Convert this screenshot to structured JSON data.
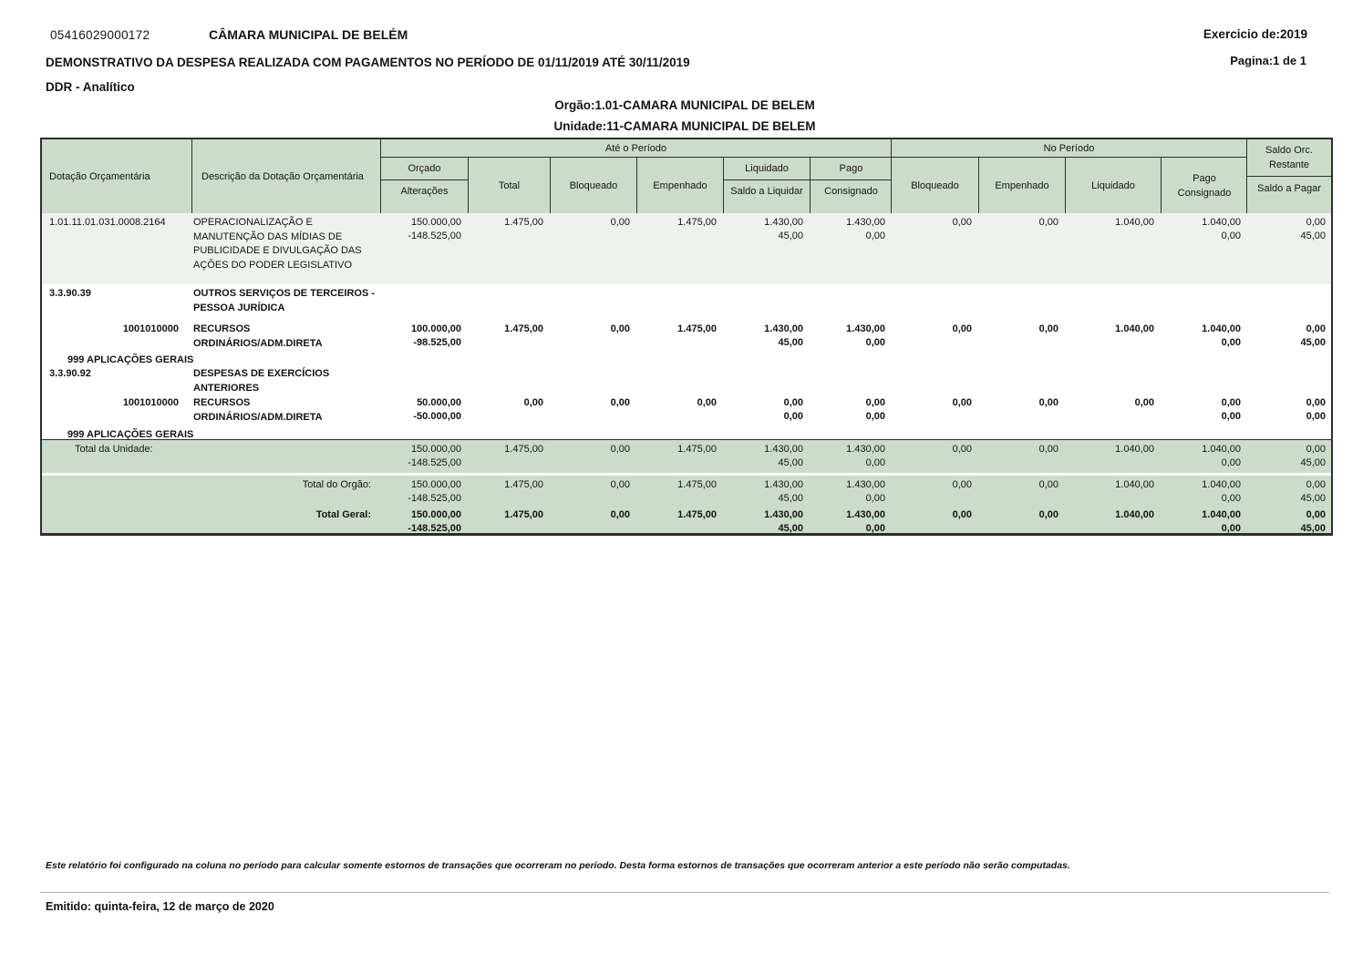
{
  "header": {
    "doc_code": "05416029000172",
    "entity": "CÂMARA MUNICIPAL DE BELÉM",
    "title": "DEMONSTRATIVO DA DESPESA REALIZADA COM PAGAMENTOS NO PERÍODO DE 01/11/2019 ATÉ 30/11/2019",
    "subtitle": "DDR - Analítico",
    "exercise": "Exercicio de:2019",
    "page": "Pagina:1 de 1",
    "orgao": "Orgão:1.01-CAMARA MUNICIPAL DE BELEM",
    "unidade": "Unidade:11-CAMARA MUNICIPAL DE BELEM"
  },
  "colors": {
    "header_green": "#ccdcca",
    "row_shade": "#eef2ec",
    "border": "#2e2e2e"
  },
  "table": {
    "head": {
      "dotacao": "Dotação Orçamentária",
      "descricao": "Descrição da Dotação Orçamentária",
      "ate_periodo": "Até o Período",
      "no_periodo": "No Período",
      "orcado": "Orçado",
      "alteracoes": "Alterações",
      "total": "Total",
      "bloqueado": "Bloqueado",
      "empenhado": "Empenhado",
      "liquidado": "Liquidado",
      "saldo_a_liquidar": "Saldo a Liquidar",
      "pago": "Pago",
      "consignado": "Consignado",
      "saldo_orc_restante": "Saldo Orc. Restante",
      "saldo_a_pagar": "Saldo a Pagar"
    },
    "rows": [
      {
        "code": "1.01.11.01.031.0008.2164",
        "desc": "OPERACIONALIZAÇÃO E MANUTENÇÃO DAS MÍDIAS DE PUBLICIDADE E DIVULGAÇÃO DAS AÇÕES DO PODER LEGISLATIVO",
        "v": {
          "orcado": "150.000,00",
          "alteracoes": "-148.525,00",
          "total": "1.475,00",
          "bloq_ate": "0,00",
          "emp_ate": "1.475,00",
          "liq_ate": "1.430,00",
          "saldo_liq": "45,00",
          "pago_ate": "1.430,00",
          "consig_ate": "0,00",
          "bloq_per": "0,00",
          "emp_per": "0,00",
          "liq_per": "1.040,00",
          "pago_per": "1.040,00",
          "consig_per": "0,00",
          "saldo_rest": "0,00",
          "saldo_pagar": "45,00"
        }
      },
      {
        "code": "3.3.90.39",
        "desc": "OUTROS SERVIÇOS DE TERCEIROS - PESSOA JURÍDICA"
      },
      {
        "code": "1001010000",
        "desc": "RECURSOS ORDINÁRIOS/ADM.DIRETA",
        "v": {
          "orcado": "100.000,00",
          "alteracoes": "-98.525,00",
          "total": "1.475,00",
          "bloq_ate": "0,00",
          "emp_ate": "1.475,00",
          "liq_ate": "1.430,00",
          "saldo_liq": "45,00",
          "pago_ate": "1.430,00",
          "consig_ate": "0,00",
          "bloq_per": "0,00",
          "emp_per": "0,00",
          "liq_per": "1.040,00",
          "pago_per": "1.040,00",
          "consig_per": "0,00",
          "saldo_rest": "0,00",
          "saldo_pagar": "45,00"
        }
      },
      {
        "code": "999 APLICAÇÕES GERAIS"
      },
      {
        "code": "3.3.90.92",
        "desc": "DESPESAS DE EXERCÍCIOS ANTERIORES"
      },
      {
        "code": "1001010000",
        "desc": "RECURSOS ORDINÁRIOS/ADM.DIRETA",
        "v": {
          "orcado": "50.000,00",
          "alteracoes": "-50.000,00",
          "total": "0,00",
          "bloq_ate": "0,00",
          "emp_ate": "0,00",
          "liq_ate": "0,00",
          "saldo_liq": "0,00",
          "pago_ate": "0,00",
          "consig_ate": "0,00",
          "bloq_per": "0,00",
          "emp_per": "0,00",
          "liq_per": "0,00",
          "pago_per": "0,00",
          "consig_per": "0,00",
          "saldo_rest": "0,00",
          "saldo_pagar": "0,00"
        }
      },
      {
        "code": "999 APLICAÇÕES GERAIS"
      }
    ],
    "totals": [
      {
        "label": "Total da Unidade:",
        "v": {
          "orcado": "150.000,00",
          "alteracoes": "-148.525,00",
          "total": "1.475,00",
          "bloq_ate": "0,00",
          "emp_ate": "1.475,00",
          "liq_ate": "1.430,00",
          "saldo_liq": "45,00",
          "pago_ate": "1.430,00",
          "consig_ate": "0,00",
          "bloq_per": "0,00",
          "emp_per": "0,00",
          "liq_per": "1.040,00",
          "pago_per": "1.040,00",
          "consig_per": "0,00",
          "saldo_rest": "0,00",
          "saldo_pagar": "45,00"
        }
      },
      {
        "label": "Total do Orgão:",
        "v": {
          "orcado": "150.000,00",
          "alteracoes": "-148.525,00",
          "total": "1.475,00",
          "bloq_ate": "0,00",
          "emp_ate": "1.475,00",
          "liq_ate": "1.430,00",
          "saldo_liq": "45,00",
          "pago_ate": "1.430,00",
          "consig_ate": "0,00",
          "bloq_per": "0,00",
          "emp_per": "0,00",
          "liq_per": "1.040,00",
          "pago_per": "1.040,00",
          "consig_per": "0,00",
          "saldo_rest": "0,00",
          "saldo_pagar": "45,00"
        }
      },
      {
        "label": "Total Geral:",
        "v": {
          "orcado": "150.000,00",
          "alteracoes": "-148.525,00",
          "total": "1.475,00",
          "bloq_ate": "0,00",
          "emp_ate": "1.475,00",
          "liq_ate": "1.430,00",
          "saldo_liq": "45,00",
          "pago_ate": "1.430,00",
          "consig_ate": "0,00",
          "bloq_per": "0,00",
          "emp_per": "0,00",
          "liq_per": "1.040,00",
          "pago_per": "1.040,00",
          "consig_per": "0,00",
          "saldo_rest": "0,00",
          "saldo_pagar": "45,00"
        }
      }
    ]
  },
  "footer": {
    "note": "Este relatório foi configurado na coluna no período para calcular somente estornos de transações que ocorreram no período. Desta forma estornos de transações que ocorreram anterior a este período não serão computadas.",
    "emitted": "Emitido: quinta-feira, 12 de março de 2020"
  }
}
